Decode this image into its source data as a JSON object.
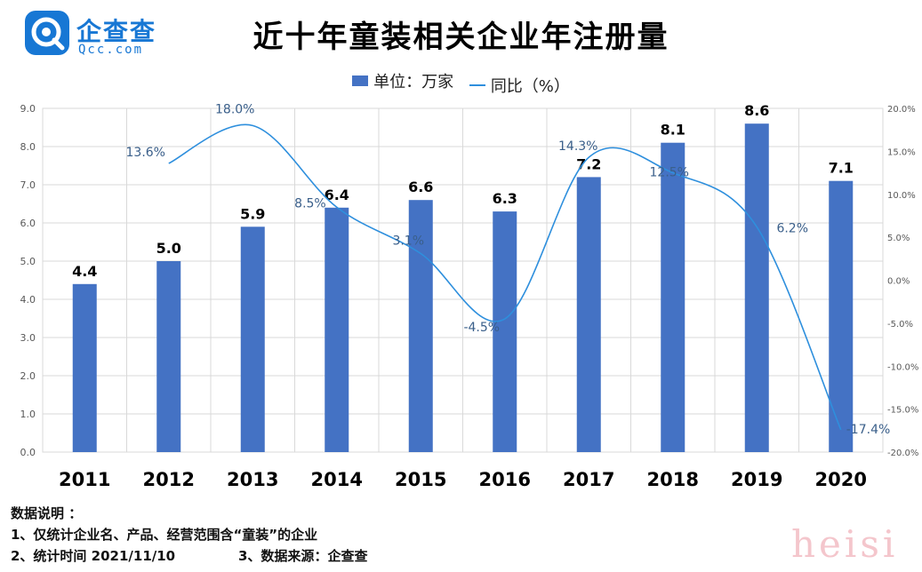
{
  "logo": {
    "name": "企查查",
    "sub": "Qcc.com"
  },
  "title": "近十年童装相关企业年注册量",
  "legend": {
    "bar": "单位：万家",
    "line": "同比（%）"
  },
  "colors": {
    "bar": "#4472c4",
    "line": "#2e8fdd",
    "line_label": "#3a5f8a",
    "grid": "#d9d9d9"
  },
  "chart_data": {
    "type": "bar",
    "categories": [
      "2011",
      "2012",
      "2013",
      "2014",
      "2015",
      "2016",
      "2017",
      "2018",
      "2019",
      "2020"
    ],
    "series": [
      {
        "name": "单位：万家",
        "type": "bar",
        "axis": "left",
        "values": [
          4.4,
          5.0,
          5.9,
          6.4,
          6.6,
          6.3,
          7.2,
          8.1,
          8.6,
          7.1
        ],
        "labels": [
          "4.4",
          "5.0",
          "5.9",
          "6.4",
          "6.6",
          "6.3",
          "7.2",
          "8.1",
          "8.6",
          "7.1"
        ]
      },
      {
        "name": "同比（%）",
        "type": "line",
        "axis": "right",
        "smooth": true,
        "values": [
          null,
          13.6,
          18.0,
          8.5,
          3.1,
          -4.5,
          14.3,
          12.5,
          6.2,
          -17.4
        ],
        "labels": [
          "",
          "13.6%",
          "18.0%",
          "8.5%",
          "3.1%",
          "-4.5%",
          "14.3%",
          "12.5%",
          "6.2%",
          "-17.4%"
        ]
      }
    ],
    "ylim": [
      0,
      9
    ],
    "yticks": [
      "0.0",
      "1.0",
      "2.0",
      "3.0",
      "4.0",
      "5.0",
      "6.0",
      "7.0",
      "8.0",
      "9.0"
    ],
    "y2lim": [
      -20,
      20
    ],
    "y2ticks": [
      "-20.0%",
      "-15.0%",
      "-10.0%",
      "-5.0%",
      "0.0%",
      "5.0%",
      "10.0%",
      "15.0%",
      "20.0%"
    ],
    "grid": true,
    "legend_position": "top-center"
  },
  "notes": {
    "heading": "数据说明 ：",
    "line1": "1、仅统计企业名、产品、经营范围含“童装”的企业",
    "line2a": "2、统计时间 2021/11/10",
    "line2b": "3、数据来源：企查查"
  },
  "watermark": "heisi"
}
